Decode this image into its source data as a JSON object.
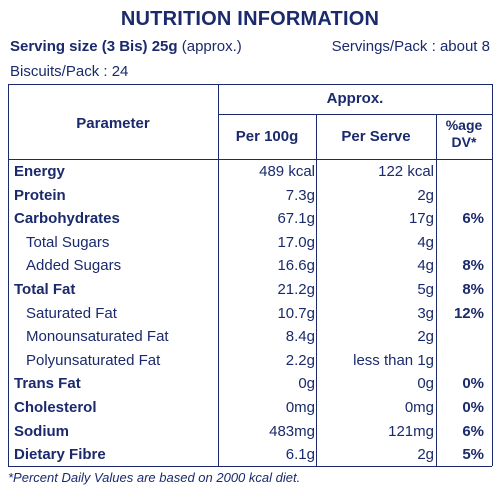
{
  "title": "NUTRITION INFORMATION",
  "serving": {
    "size_label": "Serving size (3 Bis) 25g",
    "size_note": " (approx.)",
    "servings_per_pack": "Servings/Pack : about 8",
    "biscuits_per_pack": "Biscuits/Pack : 24"
  },
  "header": {
    "approx": "Approx.",
    "parameter": "Parameter",
    "per100": "Per 100g",
    "perserve": "Per Serve",
    "dv": "%age DV*"
  },
  "rows": [
    {
      "name": "Energy",
      "p100": "489 kcal",
      "pserve": "122 kcal",
      "dv": "",
      "style": "bold"
    },
    {
      "name": "Protein",
      "p100": "7.3g",
      "pserve": "2g",
      "dv": "",
      "style": "bold"
    },
    {
      "name": "Carbohydrates",
      "p100": "67.1g",
      "pserve": "17g",
      "dv": "6%",
      "style": "bold"
    },
    {
      "name": "Total Sugars",
      "p100": "17.0g",
      "pserve": "4g",
      "dv": "",
      "style": "sub"
    },
    {
      "name": "Added Sugars",
      "p100": "16.6g",
      "pserve": "4g",
      "dv": "8%",
      "style": "sub"
    },
    {
      "name": "Total Fat",
      "p100": "21.2g",
      "pserve": "5g",
      "dv": "8%",
      "style": "bold"
    },
    {
      "name": "Saturated Fat",
      "p100": "10.7g",
      "pserve": "3g",
      "dv": "12%",
      "style": "sub"
    },
    {
      "name": "Monounsaturated Fat",
      "p100": "8.4g",
      "pserve": "2g",
      "dv": "",
      "style": "sub"
    },
    {
      "name": "Polyunsaturated Fat",
      "p100": "2.2g",
      "pserve": "less than 1g",
      "dv": "",
      "style": "sub"
    },
    {
      "name": "Trans Fat",
      "p100": "0g",
      "pserve": "0g",
      "dv": "0%",
      "style": "bold"
    },
    {
      "name": "Cholesterol",
      "p100": "0mg",
      "pserve": "0mg",
      "dv": "0%",
      "style": "bold"
    },
    {
      "name": "Sodium",
      "p100": "483mg",
      "pserve": "121mg",
      "dv": "6%",
      "style": "bold"
    },
    {
      "name": "Dietary Fibre",
      "p100": "6.1g",
      "pserve": "2g",
      "dv": "5%",
      "style": "bold"
    }
  ],
  "footnote": "*Percent Daily Values are based on 2000 kcal diet."
}
